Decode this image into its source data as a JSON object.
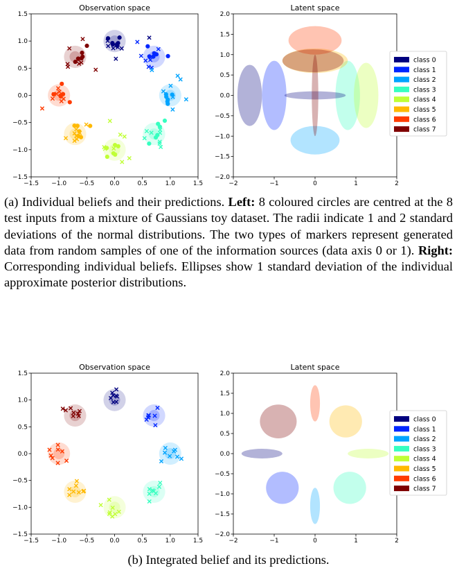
{
  "legend": {
    "entries": [
      "class 0",
      "class 1",
      "class 2",
      "class 3",
      "class 4",
      "class 5",
      "class 6",
      "class 7"
    ],
    "colors": [
      "#00007f",
      "#0026ff",
      "#00a4ff",
      "#36ffc0",
      "#c0ff36",
      "#ffb900",
      "#ff3b00",
      "#7f0000"
    ]
  },
  "chart_data": [
    {
      "type": "scatter",
      "title": "Observation space",
      "xlim": [
        -1.5,
        1.5
      ],
      "ylim": [
        -1.5,
        1.5
      ],
      "xticks": [
        "−1.5",
        "−1.0",
        "−0.5",
        "0.0",
        "0.5",
        "1.0",
        "1.5"
      ],
      "yticks": [
        "−1.5",
        "−1.0",
        "−0.5",
        "0.0",
        "0.5",
        "1.0",
        "1.5"
      ],
      "centers": [
        [
          0.0,
          1.0
        ],
        [
          0.71,
          0.71
        ],
        [
          1.0,
          0.0
        ],
        [
          0.71,
          -0.71
        ],
        [
          0.0,
          -1.0
        ],
        [
          -0.71,
          -0.71
        ],
        [
          -1.0,
          0.0
        ],
        [
          -0.71,
          0.71
        ]
      ],
      "markers": [
        "x",
        "o"
      ],
      "grid": false
    },
    {
      "type": "ellipses",
      "title": "Latent space",
      "xlim": [
        -2,
        2
      ],
      "ylim": [
        -2,
        2
      ],
      "xticks": [
        "−2",
        "−1",
        "0",
        "1",
        "2"
      ],
      "yticks": [
        "−2.0",
        "−1.5",
        "−1.0",
        "−0.5",
        "0.0",
        "0.5",
        "1.0",
        "1.5",
        "2.0"
      ],
      "ellipses": [
        {
          "class": 0,
          "x": -1.6,
          "y": 0.0,
          "rx": 0.3,
          "ry": 0.75
        },
        {
          "class": 1,
          "x": -1.0,
          "y": 0.0,
          "rx": 0.3,
          "ry": 0.85
        },
        {
          "class": 2,
          "x": 0.0,
          "y": -1.1,
          "rx": 0.6,
          "ry": 0.35
        },
        {
          "class": 3,
          "x": 0.8,
          "y": 0.0,
          "rx": 0.3,
          "ry": 0.85
        },
        {
          "class": 4,
          "x": 1.25,
          "y": 0.0,
          "rx": 0.3,
          "ry": 0.8
        },
        {
          "class": 5,
          "x": 0.0,
          "y": 0.85,
          "rx": 0.8,
          "ry": 0.3
        },
        {
          "class": 6,
          "x": 0.0,
          "y": 1.35,
          "rx": 0.65,
          "ry": 0.35
        },
        {
          "class": 7,
          "x": -0.05,
          "y": 0.85,
          "rx": 0.75,
          "ry": 0.28
        },
        {
          "class": 0,
          "x": 0.0,
          "y": 0.0,
          "rx": 0.75,
          "ry": 0.1
        },
        {
          "class": 7,
          "x": 0.0,
          "y": 0.0,
          "rx": 0.08,
          "ry": 1.0
        }
      ],
      "legend_position": "right"
    },
    {
      "type": "scatter",
      "title": "Observation space",
      "xlim": [
        -1.5,
        1.5
      ],
      "ylim": [
        -1.5,
        1.5
      ],
      "xticks": [
        "−1.5",
        "−1.0",
        "−0.5",
        "0.0",
        "0.5",
        "1.0",
        "1.5"
      ],
      "yticks": [
        "−1.5",
        "−1.0",
        "−0.5",
        "0.0",
        "0.5",
        "1.0",
        "1.5"
      ],
      "centers": [
        [
          0.0,
          1.0
        ],
        [
          0.71,
          0.71
        ],
        [
          1.0,
          0.0
        ],
        [
          0.71,
          -0.71
        ],
        [
          0.0,
          -1.0
        ],
        [
          -0.71,
          -0.71
        ],
        [
          -1.0,
          0.0
        ],
        [
          -0.71,
          0.71
        ]
      ],
      "markers": [
        "x"
      ],
      "grid": false
    },
    {
      "type": "ellipses",
      "title": "Latent space",
      "xlim": [
        -2,
        2
      ],
      "ylim": [
        -2,
        2
      ],
      "xticks": [
        "−2",
        "−1",
        "0",
        "1",
        "2"
      ],
      "yticks": [
        "−2.0",
        "−1.5",
        "−1.0",
        "−0.5",
        "0.0",
        "0.5",
        "1.0",
        "1.5",
        "2.0"
      ],
      "ellipses": [
        {
          "class": 0,
          "x": -1.3,
          "y": 0.0,
          "rx": 0.5,
          "ry": 0.12
        },
        {
          "class": 1,
          "x": -0.8,
          "y": -0.85,
          "rx": 0.4,
          "ry": 0.4
        },
        {
          "class": 2,
          "x": 0.0,
          "y": -1.3,
          "rx": 0.12,
          "ry": 0.45
        },
        {
          "class": 3,
          "x": 0.85,
          "y": -0.85,
          "rx": 0.4,
          "ry": 0.4
        },
        {
          "class": 4,
          "x": 1.3,
          "y": 0.0,
          "rx": 0.5,
          "ry": 0.12
        },
        {
          "class": 5,
          "x": 0.75,
          "y": 0.8,
          "rx": 0.4,
          "ry": 0.4
        },
        {
          "class": 6,
          "x": 0.0,
          "y": 1.25,
          "rx": 0.12,
          "ry": 0.45
        },
        {
          "class": 7,
          "x": -0.9,
          "y": 0.8,
          "rx": 0.45,
          "ry": 0.42
        }
      ],
      "legend_position": "right"
    }
  ],
  "captions": {
    "a_prefix": "(a) Individual beliefs and their predictions.",
    "a_left_label": "Left:",
    "a_left_text": "8 coloured circles are centred at the 8 test inputs from a mixture of Gaussians toy dataset. The radii indicate 1 and 2 standard deviations of the normal distributions. The two types of markers represent generated data from random samples of one of the information sources (data axis 0 or 1).",
    "a_right_label": "Right:",
    "a_right_text": "Corresponding individual beliefs. Ellipses show 1 standard deviation of the individual approximate posterior distributions.",
    "b": "(b) Integrated belief and its predictions."
  }
}
